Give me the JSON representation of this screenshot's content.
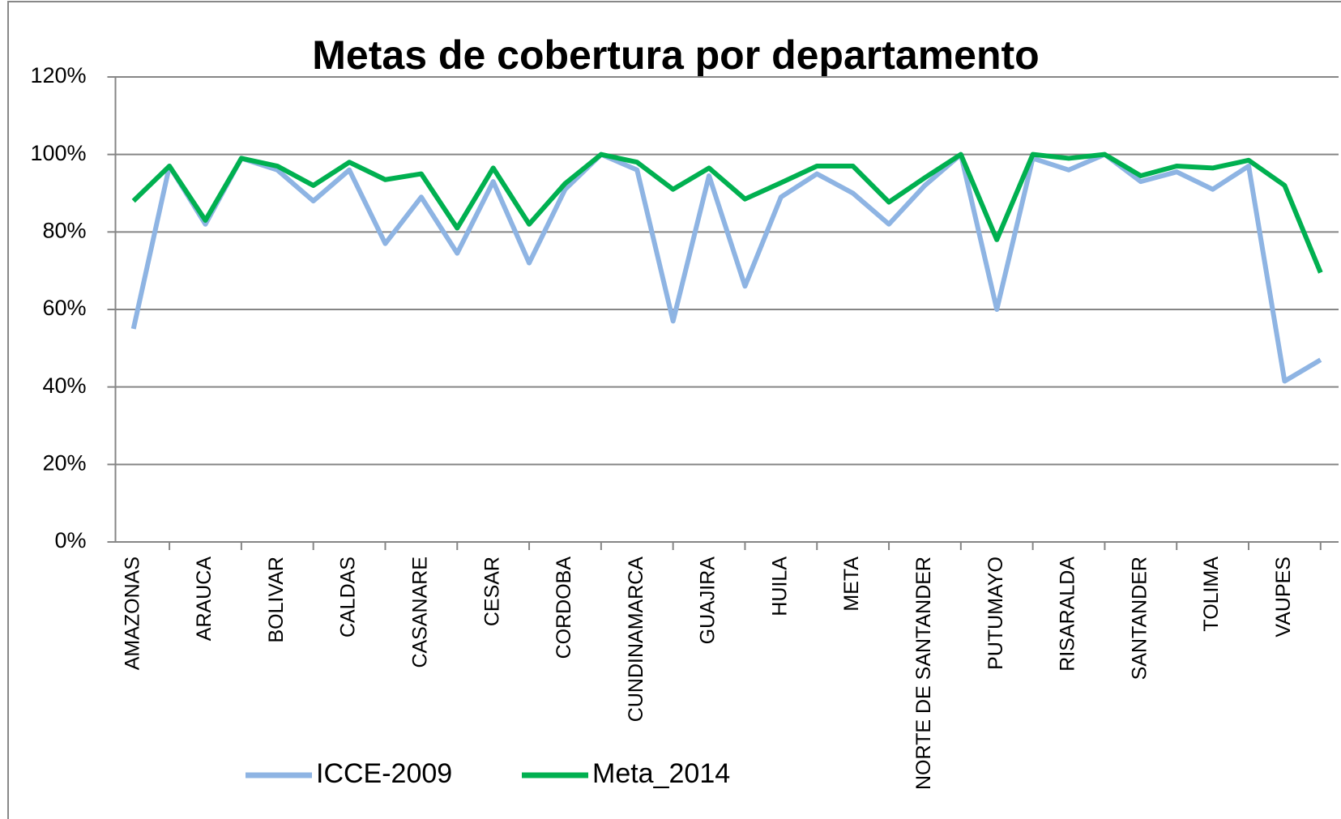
{
  "chart_data": {
    "type": "line",
    "title": "Metas de cobertura por departamento",
    "categories": [
      "AMAZONAS",
      null,
      "ARAUCA",
      null,
      "BOLIVAR",
      null,
      "CALDAS",
      null,
      "CASANARE",
      null,
      "CESAR",
      null,
      "CORDOBA",
      null,
      "CUNDINAMARCA",
      null,
      "GUAJIRA",
      null,
      "HUILA",
      null,
      "META",
      null,
      "NORTE DE SANTANDER",
      null,
      "PUTUMAYO",
      null,
      "RISARALDA",
      null,
      "SANTANDER",
      null,
      "TOLIMA",
      null,
      "VAUPES",
      null
    ],
    "series": [
      {
        "name": "ICCE-2009",
        "color": "#8eb4e3",
        "values": [
          55,
          97,
          82,
          99,
          96,
          88,
          96,
          77,
          89,
          74.5,
          93,
          72,
          91,
          100,
          96,
          57,
          94.5,
          66,
          89,
          95,
          90,
          82,
          92,
          100,
          60,
          99,
          96,
          100,
          93,
          95.5,
          91,
          97,
          41.5,
          47
        ]
      },
      {
        "name": "Meta_2014",
        "color": "#00b050",
        "values": [
          88,
          97,
          83,
          99,
          97,
          92,
          98,
          93.5,
          95,
          81,
          96.5,
          82,
          92.5,
          100,
          98,
          91,
          96.5,
          88.5,
          92.7,
          97,
          97,
          87.7,
          94,
          100,
          78,
          100,
          99,
          100,
          94.5,
          97,
          96.5,
          98.5,
          92,
          69.5
        ]
      }
    ],
    "ylim": [
      0,
      120
    ],
    "yticks": [
      {
        "value": 0,
        "label": "0%"
      },
      {
        "value": 20,
        "label": "20%"
      },
      {
        "value": 40,
        "label": "40%"
      },
      {
        "value": 60,
        "label": "60%"
      },
      {
        "value": 80,
        "label": "80%"
      },
      {
        "value": 100,
        "label": "100%"
      },
      {
        "value": 120,
        "label": "120%"
      }
    ],
    "grid": true,
    "legend": "bottom"
  }
}
